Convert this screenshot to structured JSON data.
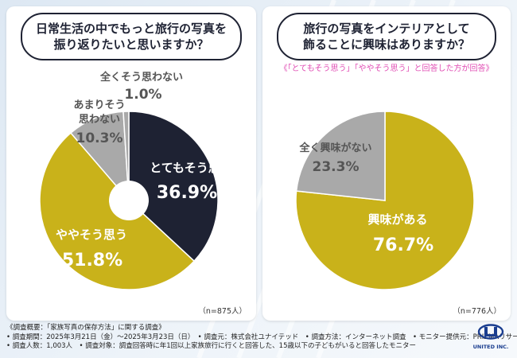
{
  "left": {
    "question_line1": "日常生活の中でもっと旅行の写真を",
    "question_line2": "振り返りたいと思いますか？",
    "n_label": "（n=875人）"
  },
  "right": {
    "question_line1": "旅行の写真をインテリアとして",
    "question_line2": "飾ることに興味はありますか？",
    "note": "《「とてもそう思う」「ややそう思う」と回答した方が回答》",
    "n_label": "（n=776人）"
  },
  "footer": {
    "line1": "《調査概要：「家族写真の保存方法」に関する調査》",
    "line2": "• 調査期間：2025年3月21日（金）～2025年3月23日（日）　• 調査元：株式会社ユナイテッド　• 調査方法：インターネット調査　• モニター提供元：PRIZMAリサーチ",
    "line3": "• 調査人数：1,003人　• 調査対象：調査回答時に年1回以上家族旅行に行くと回答した、15歳以下の子どもがいると回答したモニター"
  },
  "logo": {
    "text": "UNITED INC."
  },
  "colors": {
    "navy": "#1e2233",
    "mustard": "#c9b21a",
    "gray": "#a9a9a9",
    "pink": "#e04bb3"
  },
  "chart_data": [
    {
      "type": "pie",
      "title": "日常生活の中でもっと旅行の写真を振り返りたいと思いますか？",
      "n": 875,
      "slices": [
        {
          "label": "とてもそう思う",
          "value": 36.9,
          "display": "36.9%"
        },
        {
          "label": "ややそう思う",
          "value": 51.8,
          "display": "51.8%"
        },
        {
          "label": "あまりそう思わない",
          "label_line1": "あまりそう",
          "label_line2": "思わない",
          "value": 10.3,
          "display": "10.3%"
        },
        {
          "label": "全くそう思わない",
          "value": 1.0,
          "display": "1.0%"
        }
      ]
    },
    {
      "type": "pie",
      "title": "旅行の写真をインテリアとして飾ることに興味はありますか？",
      "n": 776,
      "slices": [
        {
          "label": "興味がある",
          "value": 76.7,
          "display": "76.7%"
        },
        {
          "label": "全く興味がない",
          "value": 23.3,
          "display": "23.3%"
        }
      ]
    }
  ]
}
